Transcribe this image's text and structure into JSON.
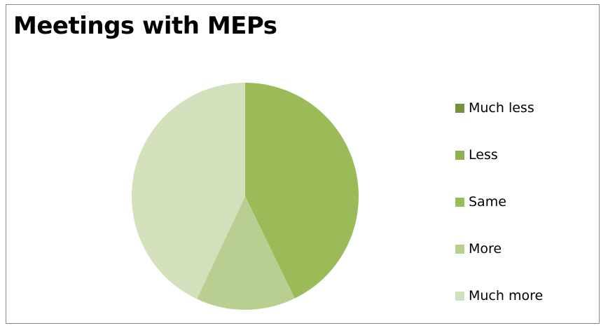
{
  "chart_data": {
    "type": "pie",
    "title": "Meetings with MEPs",
    "categories": [
      "Much less",
      "Less",
      "Same",
      "More",
      "Much more"
    ],
    "values": [
      0,
      0,
      42.8,
      14.2,
      43.0
    ],
    "colors": [
      "#76923c",
      "#8fb04f",
      "#9bbb59",
      "#b9cf92",
      "#d3e0bc"
    ],
    "legend_position": "right",
    "start_angle_deg": 0,
    "direction": "clockwise"
  }
}
